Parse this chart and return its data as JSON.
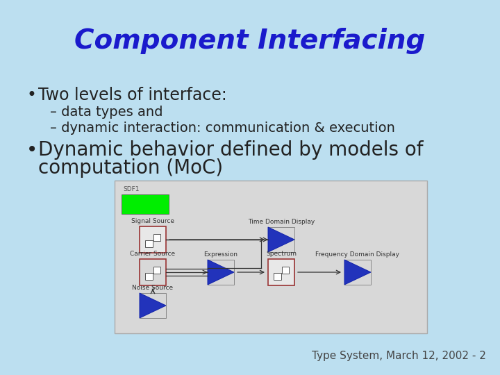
{
  "title": "Component Interfacing",
  "title_color": "#1a1acc",
  "background_color": "#bcdff0",
  "bullet1": "Two levels of interface:",
  "sub1": "– data types and",
  "sub2": "– dynamic interaction: communication & execution",
  "bullet2_line1": "Dynamic behavior defined by models of",
  "bullet2_line2": "computation (MoC)",
  "footer": "Type System, March 12, 2002 - 2",
  "text_color": "#222222",
  "title_fontsize": 28,
  "bullet1_fontsize": 17,
  "sub_fontsize": 14,
  "bullet2_fontsize": 20,
  "footer_fontsize": 11
}
